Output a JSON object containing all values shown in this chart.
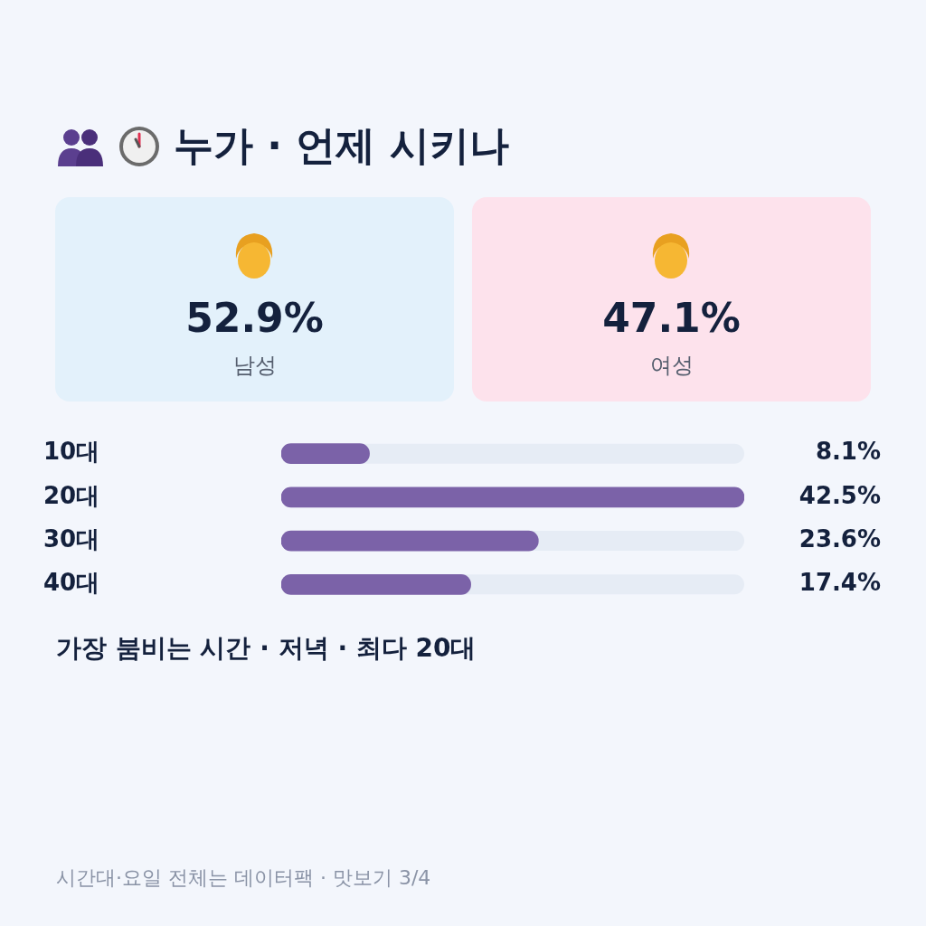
{
  "chart_data": [
    {
      "type": "other",
      "title": "누가 · 언제 시키나",
      "categories": [
        "남성",
        "여성"
      ],
      "value_labels": [
        "52.9%",
        "47.1%"
      ],
      "colors": [
        "#e3f1fb",
        "#fde2ec"
      ]
    },
    {
      "type": "bar",
      "orientation": "horizontal",
      "categories": [
        "10대",
        "20대",
        "30대",
        "40대"
      ],
      "values": [
        8.1,
        42.5,
        23.6,
        17.4
      ],
      "value_labels": [
        "8.1%",
        "42.5%",
        "23.6%",
        "17.4%"
      ],
      "color": "#7b62a8",
      "xlim": [
        0,
        42.5
      ],
      "tick_labels": "y",
      "legend": false,
      "annotations": [
        "가장 붐비는 시간 · 저녁 · 최다 20대",
        "시간대·요일 전체는 데이터팩 · 맛보기 3/4"
      ]
    }
  ]
}
